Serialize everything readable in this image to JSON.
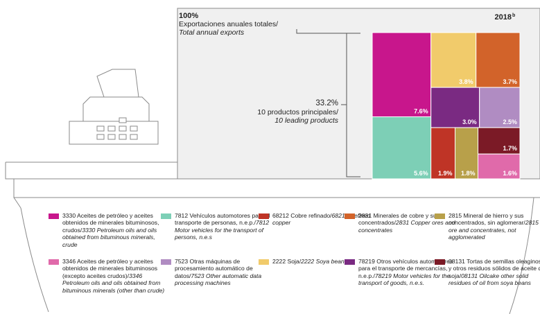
{
  "chart_data": {
    "type": "treemap",
    "total": {
      "value": 100,
      "label": "100%"
    },
    "total_title": "Exportaciones anuales totales/",
    "total_title_en": "Total annual exports",
    "year": "2018",
    "year_note": "b",
    "subset": {
      "value": 33.2,
      "label": "33.2%"
    },
    "subset_title": "10 productos principales/",
    "subset_title_en": "10 leading products",
    "series": [
      {
        "name": "3330 Aceites de petróleo y aceites obtenidos de minerales bituminosos, crudos/",
        "name_en": "3330 Petroleum oils and oils obtained from bituminous minerals, crude",
        "color": "#c8168c",
        "value": 7.6,
        "value_label": "7.6%"
      },
      {
        "name": "7812 Vehículos automotores para el transporte de personas, n.e.p./",
        "name_en": "7812 Motor vehicles for the transport of persons, n.e.s",
        "color": "#7dcfb6",
        "value": 5.6,
        "value_label": "5.6%"
      },
      {
        "name": "2222 Soja/",
        "name_en": "2222 Soya beans",
        "color": "#f1cb6b",
        "value": 3.8,
        "value_label": "3.8%"
      },
      {
        "name": "2831 Minerales de cobre y sus concentrados/",
        "name_en": "2831 Copper ores and concentrates",
        "color": "#d2632a",
        "value": 3.7,
        "value_label": "3.7%"
      },
      {
        "name": "78219 Otros vehículos automotores para el transporte de mercancías, n.e.p./",
        "name_en": "78219 Motor vehicles for the transport of goods, n.e.s.",
        "color": "#7a2a82",
        "value": 3.0,
        "value_label": "3.0%"
      },
      {
        "name": "7523 Otras máquinas de procesamiento automático de datos/",
        "name_en": "7523 Other automatic data processing machines",
        "color": "#b08cc2",
        "value": 2.5,
        "value_label": "2.5%"
      },
      {
        "name": "68212 Cobre refinado/",
        "name_en": "68212 Refined copper",
        "color": "#bf3426",
        "value": 1.9,
        "value_label": "1.9%"
      },
      {
        "name": "2815 Mineral de hierro y sus concentrados, sin aglomerar/",
        "name_en": "2815 Iron ore and concentrates, not agglomerated",
        "color": "#b8a04a",
        "value": 1.8,
        "value_label": "1.8%"
      },
      {
        "name": "08131 Tortas de semillas oleaginosas y otros residuos sólidos de aceite de soja/",
        "name_en": "08131 Oilcake other solid residues of oil from soya beans",
        "color": "#7b1a26",
        "value": 1.7,
        "value_label": "1.7%"
      },
      {
        "name": "3346 Aceites de petróleo y aceites obtenidos de minerales bituminosos (excepto aceites crudos)/",
        "name_en": "3346 Petroleum oils and oils obtained from bituminous minerals (other than crude)",
        "color": "#e06aaa",
        "value": 1.6,
        "value_label": "1.6%"
      }
    ]
  }
}
